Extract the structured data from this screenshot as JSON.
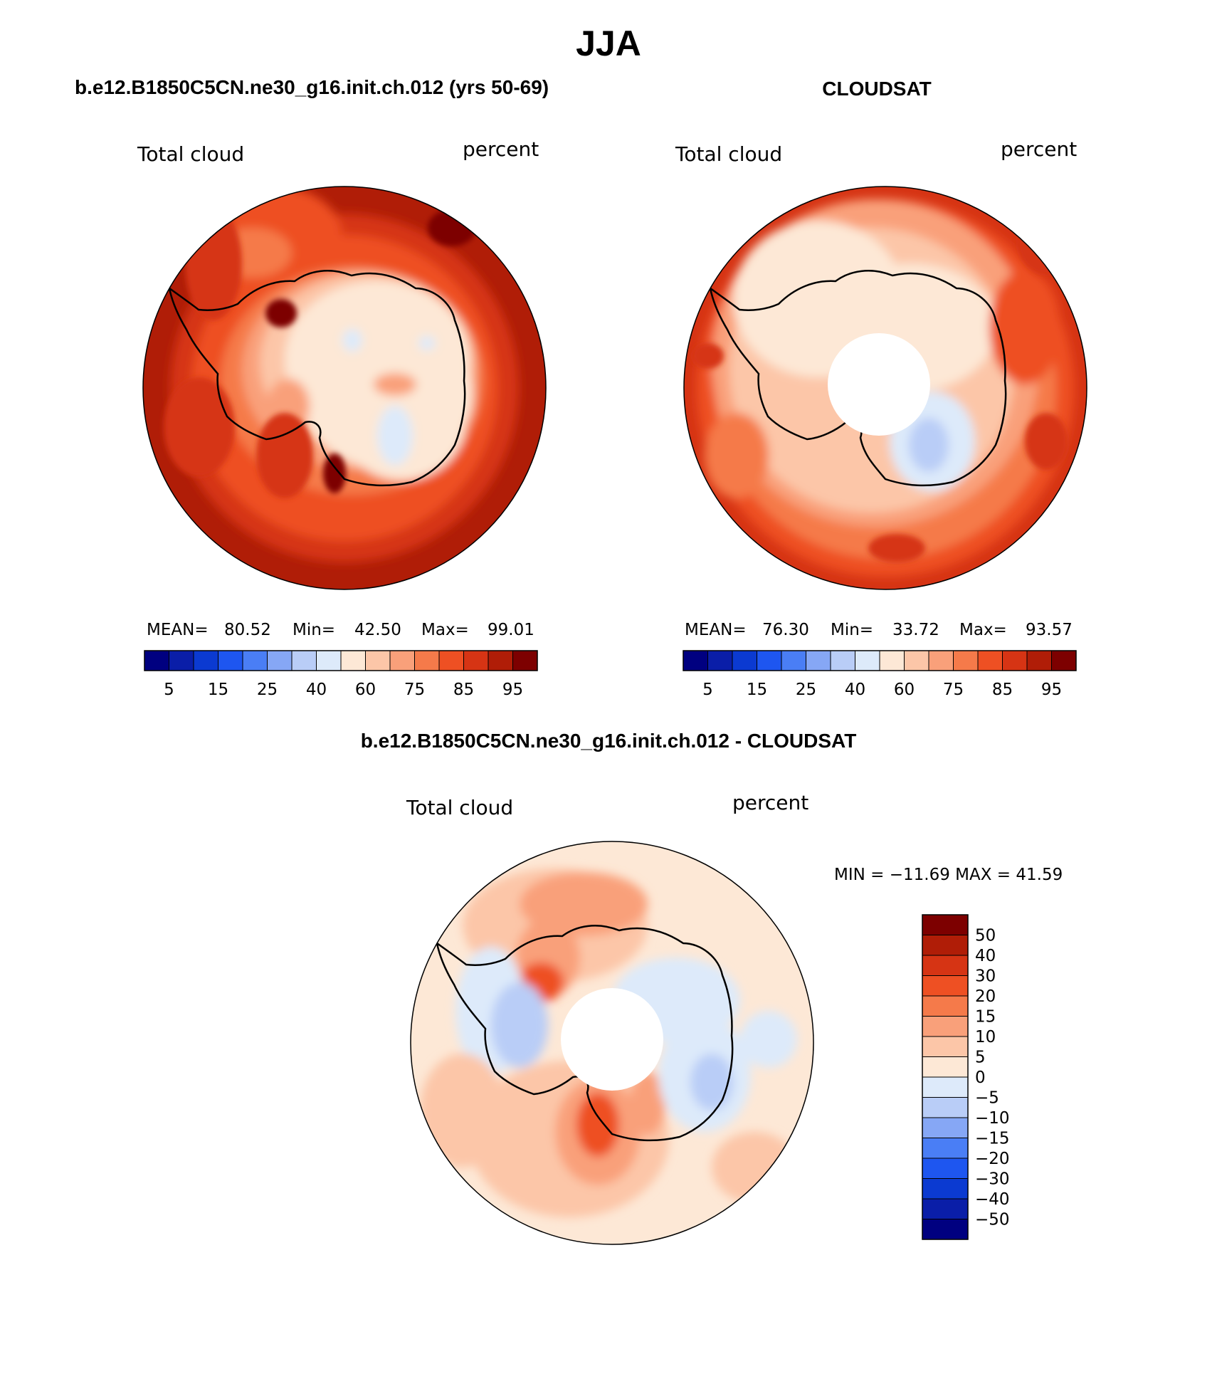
{
  "figure": {
    "season": "JJA",
    "panel_model_title": "b.e12.B1850C5CN.ne30_g16.init.ch.012 (yrs 50-69)",
    "panel_obs_title": "CLOUDSAT",
    "panel_diff_title": "b.e12.B1850C5CN.ne30_g16.init.ch.012 - CLOUDSAT"
  },
  "panels": {
    "model": {
      "variable": "Total cloud",
      "units": "percent",
      "stats": {
        "mean_label": "MEAN=",
        "mean": "80.52",
        "min_label": "Min=",
        "min": "42.50",
        "max_label": "Max=",
        "max": "99.01"
      },
      "pole_hole": false
    },
    "obs": {
      "variable": "Total cloud",
      "units": "percent",
      "stats": {
        "mean_label": "MEAN=",
        "mean": "76.30",
        "min_label": "Min=",
        "min": "33.72",
        "max_label": "Max=",
        "max": "93.57"
      },
      "pole_hole": true
    },
    "diff": {
      "variable": "Total cloud",
      "units": "percent",
      "stats_text": "MIN = −11.69 MAX =  41.59",
      "pole_hole": true
    }
  },
  "colorbars": {
    "abs": {
      "tick_labels": [
        "5",
        "15",
        "25",
        "40",
        "60",
        "75",
        "85",
        "95"
      ],
      "colors": [
        "#000080",
        "#0a1ea8",
        "#0b3ad1",
        "#1e56f0",
        "#4a7ef5",
        "#86a7f5",
        "#b9cdf7",
        "#ddeafa",
        "#fde8d6",
        "#fcc6a8",
        "#f9a07a",
        "#f57a4a",
        "#ee5023",
        "#d63414",
        "#b01d07",
        "#7d0000"
      ]
    },
    "diff": {
      "levels": [
        "50",
        "40",
        "30",
        "20",
        "15",
        "10",
        "5",
        "0",
        "−5",
        "−10",
        "−15",
        "−20",
        "−30",
        "−40",
        "−50"
      ],
      "colors": [
        "#7d0000",
        "#b01d07",
        "#d63414",
        "#ee5023",
        "#f57a4a",
        "#f9a07a",
        "#fcc6a8",
        "#fde8d6",
        "#ddeafa",
        "#b9cdf7",
        "#86a7f5",
        "#4a7ef5",
        "#1e56f0",
        "#0b3ad1",
        "#0a1ea8",
        "#000080"
      ]
    }
  }
}
